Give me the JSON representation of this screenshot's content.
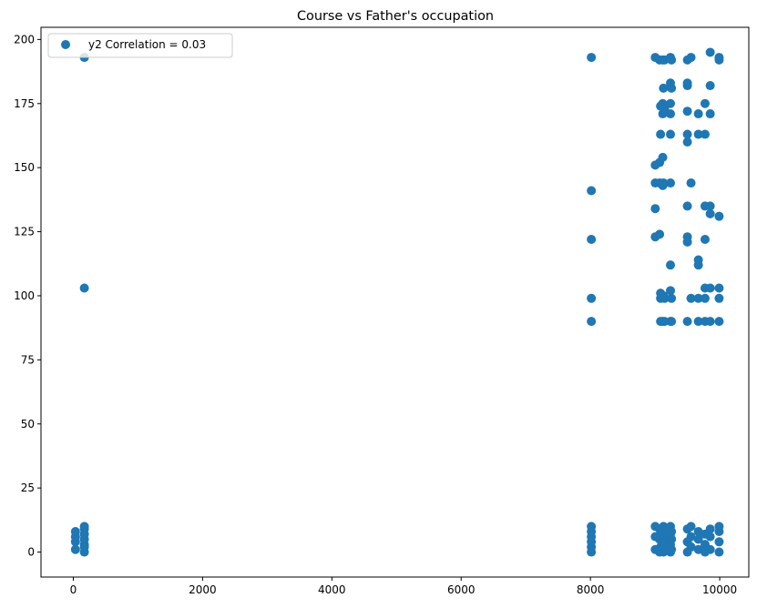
{
  "chart_data": {
    "type": "scatter",
    "title": "Course vs Father's occupation",
    "xlabel": "",
    "ylabel": "",
    "xlim": [
      -500,
      10450
    ],
    "ylim": [
      -9.75,
      204.75
    ],
    "xticks": [
      0,
      2000,
      4000,
      6000,
      8000,
      10000
    ],
    "yticks": [
      0,
      25,
      50,
      75,
      100,
      125,
      150,
      175,
      200
    ],
    "grid": false,
    "legend_position": "top-left",
    "color": "#1f77b4",
    "series": [
      {
        "name": "y2 Correlation = 0.03",
        "points": [
          [
            33,
            1
          ],
          [
            33,
            4
          ],
          [
            33,
            6
          ],
          [
            33,
            8
          ],
          [
            171,
            0
          ],
          [
            171,
            2
          ],
          [
            171,
            3
          ],
          [
            171,
            5
          ],
          [
            171,
            7
          ],
          [
            171,
            9
          ],
          [
            171,
            10
          ],
          [
            171,
            103
          ],
          [
            171,
            193
          ],
          [
            8014,
            0
          ],
          [
            8014,
            2
          ],
          [
            8014,
            4
          ],
          [
            8014,
            6
          ],
          [
            8014,
            8
          ],
          [
            8014,
            10
          ],
          [
            8014,
            90
          ],
          [
            8014,
            99
          ],
          [
            8014,
            122
          ],
          [
            8014,
            141
          ],
          [
            8014,
            193
          ],
          [
            9003,
            1
          ],
          [
            9003,
            6
          ],
          [
            9003,
            10
          ],
          [
            9003,
            123
          ],
          [
            9003,
            134
          ],
          [
            9003,
            144
          ],
          [
            9003,
            151
          ],
          [
            9003,
            193
          ],
          [
            9070,
            0
          ],
          [
            9070,
            5
          ],
          [
            9070,
            9
          ],
          [
            9070,
            124
          ],
          [
            9070,
            144
          ],
          [
            9070,
            152
          ],
          [
            9070,
            192
          ],
          [
            9085,
            2
          ],
          [
            9085,
            7
          ],
          [
            9085,
            90
          ],
          [
            9085,
            99
          ],
          [
            9085,
            101
          ],
          [
            9085,
            163
          ],
          [
            9085,
            174
          ],
          [
            9119,
            1
          ],
          [
            9119,
            4
          ],
          [
            9119,
            8
          ],
          [
            9119,
            90
          ],
          [
            9119,
            143
          ],
          [
            9119,
            154
          ],
          [
            9119,
            171
          ],
          [
            9119,
            175
          ],
          [
            9119,
            192
          ],
          [
            9130,
            0
          ],
          [
            9130,
            5
          ],
          [
            9130,
            10
          ],
          [
            9130,
            100
          ],
          [
            9130,
            144
          ],
          [
            9130,
            181
          ],
          [
            9147,
            2
          ],
          [
            9147,
            6
          ],
          [
            9147,
            9
          ],
          [
            9147,
            90
          ],
          [
            9147,
            99
          ],
          [
            9147,
            173
          ],
          [
            9147,
            192
          ],
          [
            9238,
            0
          ],
          [
            9238,
            3
          ],
          [
            9238,
            7
          ],
          [
            9238,
            10
          ],
          [
            9238,
            90
          ],
          [
            9238,
            102
          ],
          [
            9238,
            112
          ],
          [
            9238,
            144
          ],
          [
            9238,
            163
          ],
          [
            9238,
            171
          ],
          [
            9238,
            175
          ],
          [
            9238,
            183
          ],
          [
            9238,
            193
          ],
          [
            9254,
            1
          ],
          [
            9254,
            5
          ],
          [
            9254,
            8
          ],
          [
            9254,
            90
          ],
          [
            9254,
            99
          ],
          [
            9254,
            181
          ],
          [
            9254,
            192
          ],
          [
            9500,
            0
          ],
          [
            9500,
            4
          ],
          [
            9500,
            9
          ],
          [
            9500,
            90
          ],
          [
            9500,
            121
          ],
          [
            9500,
            123
          ],
          [
            9500,
            135
          ],
          [
            9500,
            160
          ],
          [
            9500,
            163
          ],
          [
            9500,
            172
          ],
          [
            9500,
            182
          ],
          [
            9500,
            183
          ],
          [
            9500,
            192
          ],
          [
            9556,
            2
          ],
          [
            9556,
            6
          ],
          [
            9556,
            10
          ],
          [
            9556,
            99
          ],
          [
            9556,
            144
          ],
          [
            9556,
            193
          ],
          [
            9670,
            1
          ],
          [
            9670,
            5
          ],
          [
            9670,
            8
          ],
          [
            9670,
            90
          ],
          [
            9670,
            99
          ],
          [
            9670,
            112
          ],
          [
            9670,
            114
          ],
          [
            9670,
            163
          ],
          [
            9670,
            171
          ],
          [
            9773,
            0
          ],
          [
            9773,
            3
          ],
          [
            9773,
            7
          ],
          [
            9773,
            90
          ],
          [
            9773,
            99
          ],
          [
            9773,
            103
          ],
          [
            9773,
            122
          ],
          [
            9773,
            135
          ],
          [
            9773,
            163
          ],
          [
            9773,
            175
          ],
          [
            9853,
            1
          ],
          [
            9853,
            6
          ],
          [
            9853,
            9
          ],
          [
            9853,
            90
          ],
          [
            9853,
            103
          ],
          [
            9853,
            132
          ],
          [
            9853,
            135
          ],
          [
            9853,
            171
          ],
          [
            9853,
            182
          ],
          [
            9853,
            195
          ],
          [
            9991,
            0
          ],
          [
            9991,
            4
          ],
          [
            9991,
            8
          ],
          [
            9991,
            10
          ],
          [
            9991,
            90
          ],
          [
            9991,
            99
          ],
          [
            9991,
            103
          ],
          [
            9991,
            131
          ],
          [
            9991,
            192
          ],
          [
            9991,
            193
          ]
        ]
      }
    ]
  }
}
